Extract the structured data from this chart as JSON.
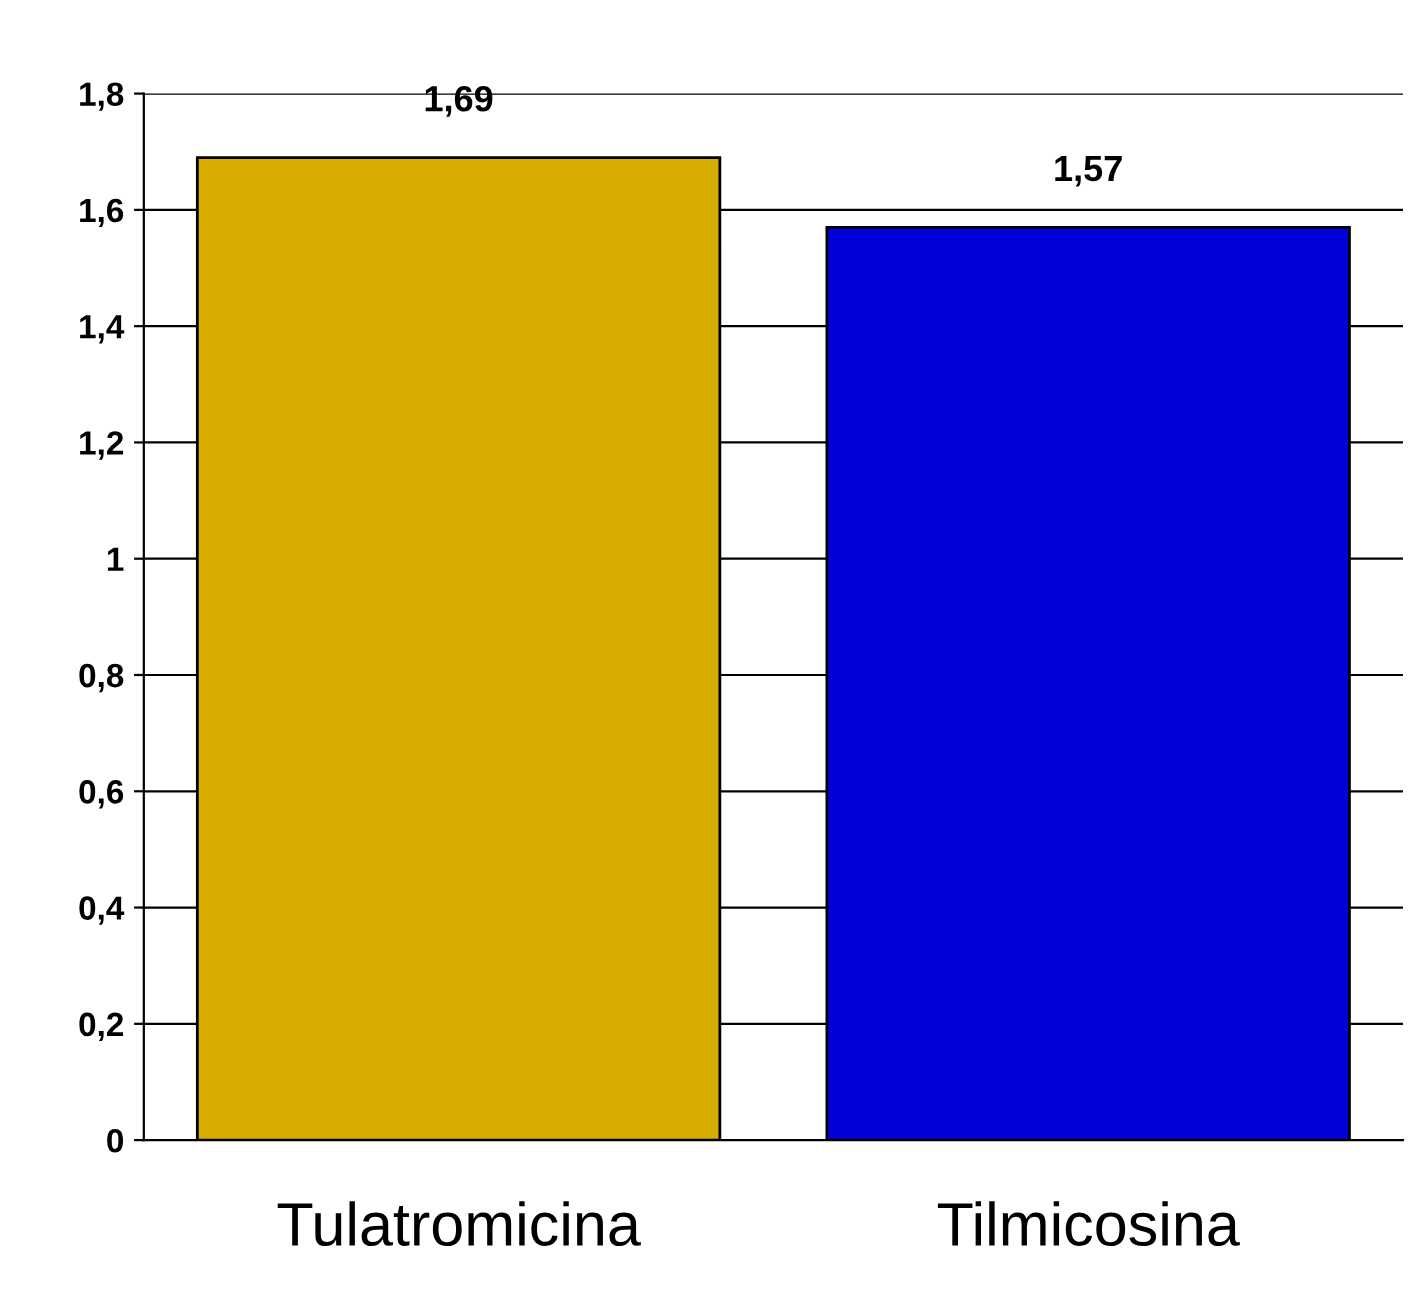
{
  "chart_data": {
    "type": "bar",
    "categories": [
      "Tulatromicina",
      "Tilmicosina"
    ],
    "values": [
      1.69,
      1.57
    ],
    "colors": [
      "#d9ac00",
      "#0000d8"
    ],
    "value_labels": [
      "1,69",
      "1,57"
    ],
    "ylim": [
      0,
      1.8
    ],
    "yticks": [
      0,
      {
        "value": 0.2,
        "label": "0,2"
      },
      {
        "value": 0.4,
        "label": "0,4"
      },
      {
        "value": 0.6,
        "label": "0,6"
      },
      {
        "value": 0.8,
        "label": "0,8"
      },
      1,
      {
        "value": 1.2,
        "label": "1,2"
      },
      {
        "value": 1.4,
        "label": "1,4"
      },
      {
        "value": 1.6,
        "label": "1,6"
      },
      {
        "value": 1.8,
        "label": "1,8"
      }
    ],
    "grid": "y"
  }
}
